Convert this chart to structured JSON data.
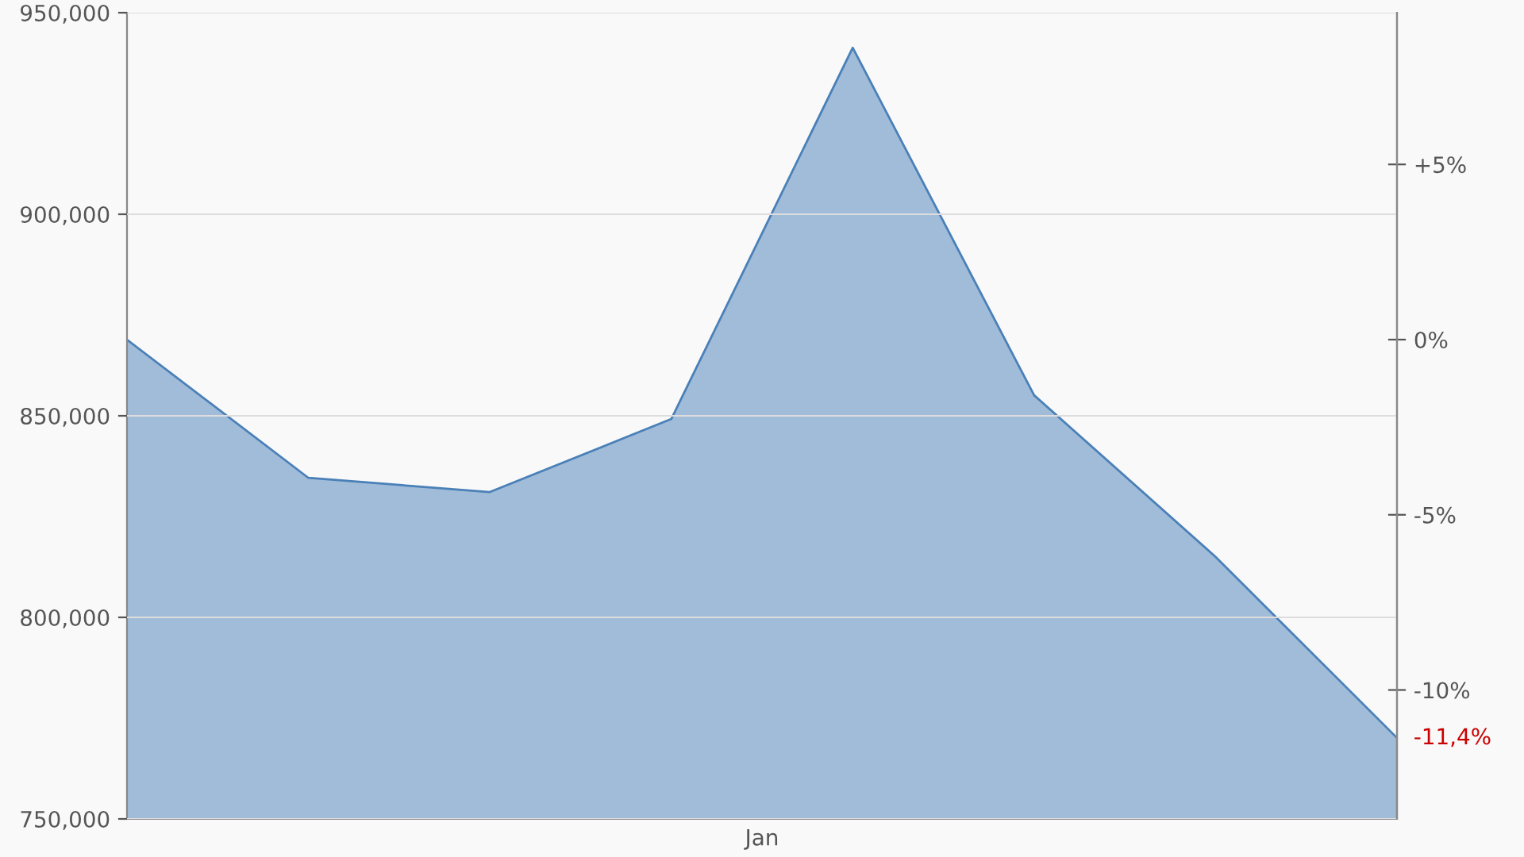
{
  "chart_data": {
    "type": "area",
    "categories": [
      null,
      null,
      null,
      null,
      null,
      null,
      null,
      null
    ],
    "series": [
      {
        "color": "#4a80b8",
        "values": [
          868900,
          834600,
          831100,
          849200,
          941300,
          855100,
          815000,
          770100
        ]
      }
    ],
    "ylim": [
      750000,
      950000
    ],
    "yticks": [
      {
        "value": 750000,
        "label": "750,000"
      },
      {
        "value": 800000,
        "label": "800,000"
      },
      {
        "value": 850000,
        "label": "850,000"
      },
      {
        "value": 900000,
        "label": "900,000"
      },
      {
        "value": 950000,
        "label": "950,000"
      }
    ],
    "y2lim": [
      -13.68,
      9.33
    ],
    "y2ticks": [
      {
        "value": 5,
        "label": "+5%"
      },
      {
        "value": 0,
        "label": "0%"
      },
      {
        "value": -5,
        "label": "-5%"
      },
      {
        "value": -10,
        "label": "-10%"
      }
    ],
    "annotations": [
      "-11,4%",
      "Jan"
    ],
    "grid": "y"
  }
}
